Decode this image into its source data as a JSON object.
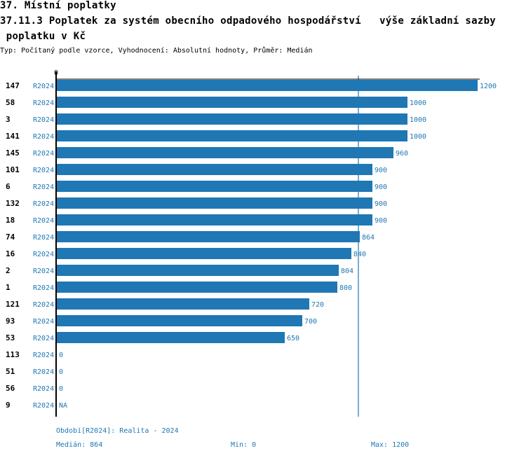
{
  "header": {
    "section_title": "37. Místní poplatky",
    "chart_title_line1": "37.11.3 Poplatek za systém obecního odpadového hospodářství   výše základní sazby",
    "chart_title_line2": " poplatku v Kč",
    "subtitle": "Typ: Počítaný podle vzorce, Vyhodnocení: Absolutní hodnoty, Průměr: Medián"
  },
  "colors": {
    "bar": "#1f77b4",
    "label_blue": "#1f77b4",
    "axis": "#000000",
    "median_line": "#1f77b4"
  },
  "chart_data": {
    "type": "bar",
    "orientation": "horizontal",
    "title": "37.11.3 Poplatek za systém obecního odpadového hospodářství výše základní sazby poplatku v Kč",
    "axis_zero_label": "0",
    "xlim": [
      0,
      1200
    ],
    "median": 864,
    "categories": [
      "147",
      "58",
      "3",
      "141",
      "145",
      "101",
      "6",
      "132",
      "18",
      "74",
      "16",
      "2",
      "1",
      "121",
      "93",
      "53",
      "113",
      "51",
      "56",
      "9"
    ],
    "period_labels": [
      "R2024",
      "R2024",
      "R2024",
      "R2024",
      "R2024",
      "R2024",
      "R2024",
      "R2024",
      "R2024",
      "R2024",
      "R2024",
      "R2024",
      "R2024",
      "R2024",
      "R2024",
      "R2024",
      "R2024",
      "R2024",
      "R2024",
      "R2024"
    ],
    "values": [
      1200,
      1000,
      1000,
      1000,
      960,
      900,
      900,
      900,
      900,
      864,
      840,
      804,
      800,
      720,
      700,
      650,
      0,
      0,
      0,
      null
    ],
    "value_labels": [
      "1200",
      "1000",
      "1000",
      "1000",
      "960",
      "900",
      "900",
      "900",
      "900",
      "864",
      "840",
      "804",
      "800",
      "720",
      "700",
      "650",
      "0",
      "0",
      "0",
      "NA"
    ]
  },
  "footer": {
    "period": "Období[R2024]: Realita - 2024",
    "median": "Medián: 864",
    "min": "Min: 0",
    "max": "Max: 1200"
  }
}
